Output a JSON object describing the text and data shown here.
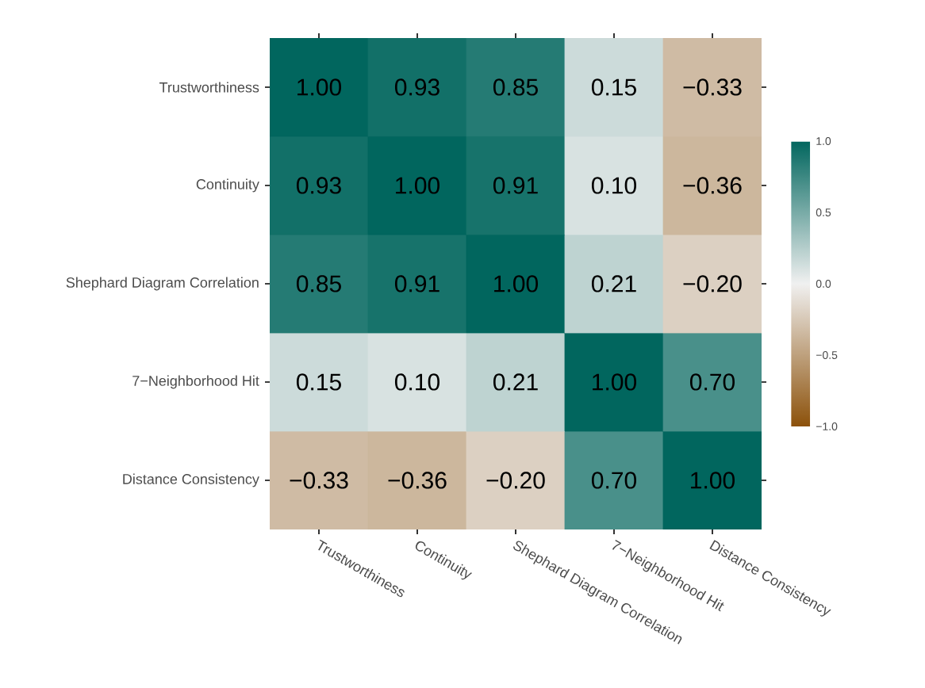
{
  "chart_data": {
    "type": "heatmap",
    "categories": [
      "Trustworthiness",
      "Continuity",
      "Shephard Diagram Correlation",
      "7−Neighborhood Hit",
      "Distance Consistency"
    ],
    "y_categories": [
      "Trustworthiness",
      "Continuity",
      "Shephard Diagram Correlation",
      "7−Neighborhood Hit",
      "Distance Consistency"
    ],
    "cells": [
      [
        1.0,
        0.93,
        0.85,
        0.15,
        -0.33
      ],
      [
        0.93,
        1.0,
        0.91,
        0.1,
        -0.36
      ],
      [
        0.85,
        0.91,
        1.0,
        0.21,
        -0.2
      ],
      [
        0.15,
        0.1,
        0.21,
        1.0,
        0.7
      ],
      [
        -0.33,
        -0.36,
        -0.2,
        0.7,
        1.0
      ]
    ],
    "cell_labels": [
      [
        "1.00",
        "0.93",
        "0.85",
        "0.15",
        "−0.33"
      ],
      [
        "0.93",
        "1.00",
        "0.91",
        "0.10",
        "−0.36"
      ],
      [
        "0.85",
        "0.91",
        "1.00",
        "0.21",
        "−0.20"
      ],
      [
        "0.15",
        "0.10",
        "0.21",
        "1.00",
        "0.70"
      ],
      [
        "−0.33",
        "−0.36",
        "−0.20",
        "0.70",
        "1.00"
      ]
    ],
    "clim": [
      -1,
      1
    ],
    "cticks": [
      {
        "value": -1,
        "label": "−1.0"
      },
      {
        "value": -0.5,
        "label": "−0.5"
      },
      {
        "value": 0,
        "label": "0.0"
      },
      {
        "value": 0.5,
        "label": "0.5"
      },
      {
        "value": 1,
        "label": "1.0"
      }
    ]
  }
}
